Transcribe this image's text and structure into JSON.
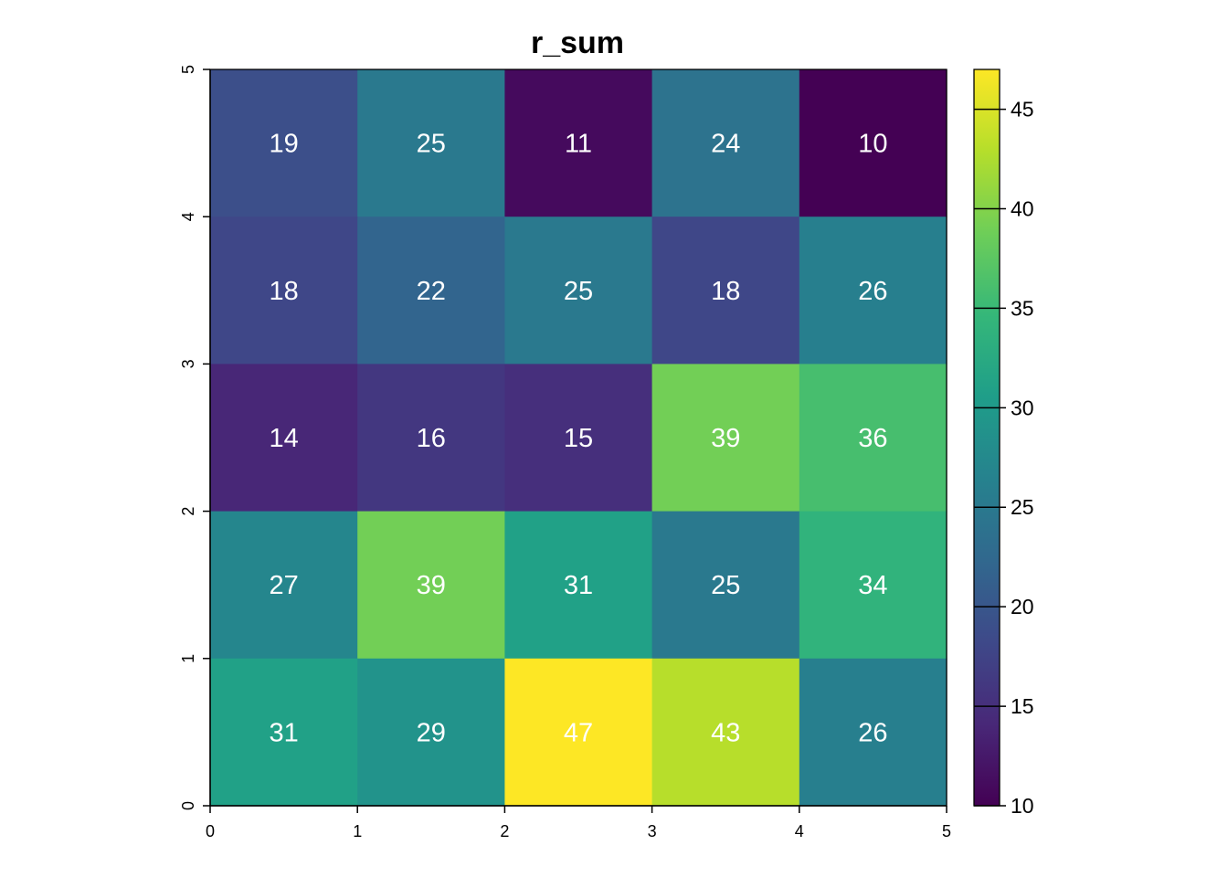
{
  "chart_data": {
    "type": "heatmap",
    "title": "r_sum",
    "x_ticks": [
      "0",
      "1",
      "2",
      "3",
      "4",
      "5"
    ],
    "y_ticks": [
      "0",
      "1",
      "2",
      "3",
      "4",
      "5"
    ],
    "xlim": [
      0,
      5
    ],
    "ylim": [
      0,
      5
    ],
    "rows_top_to_bottom": [
      [
        19,
        25,
        11,
        24,
        10
      ],
      [
        18,
        22,
        25,
        18,
        26
      ],
      [
        14,
        16,
        15,
        39,
        36
      ],
      [
        27,
        39,
        31,
        25,
        34
      ],
      [
        31,
        29,
        47,
        43,
        26
      ]
    ],
    "value_range": [
      10,
      47
    ],
    "colormap": "viridis",
    "legend": {
      "placement": "right",
      "ticks": [
        "10",
        "15",
        "20",
        "25",
        "30",
        "35",
        "40",
        "45"
      ],
      "tick_values": [
        10,
        15,
        20,
        25,
        30,
        35,
        40,
        45
      ]
    },
    "cell_label_color": "#ffffff"
  }
}
